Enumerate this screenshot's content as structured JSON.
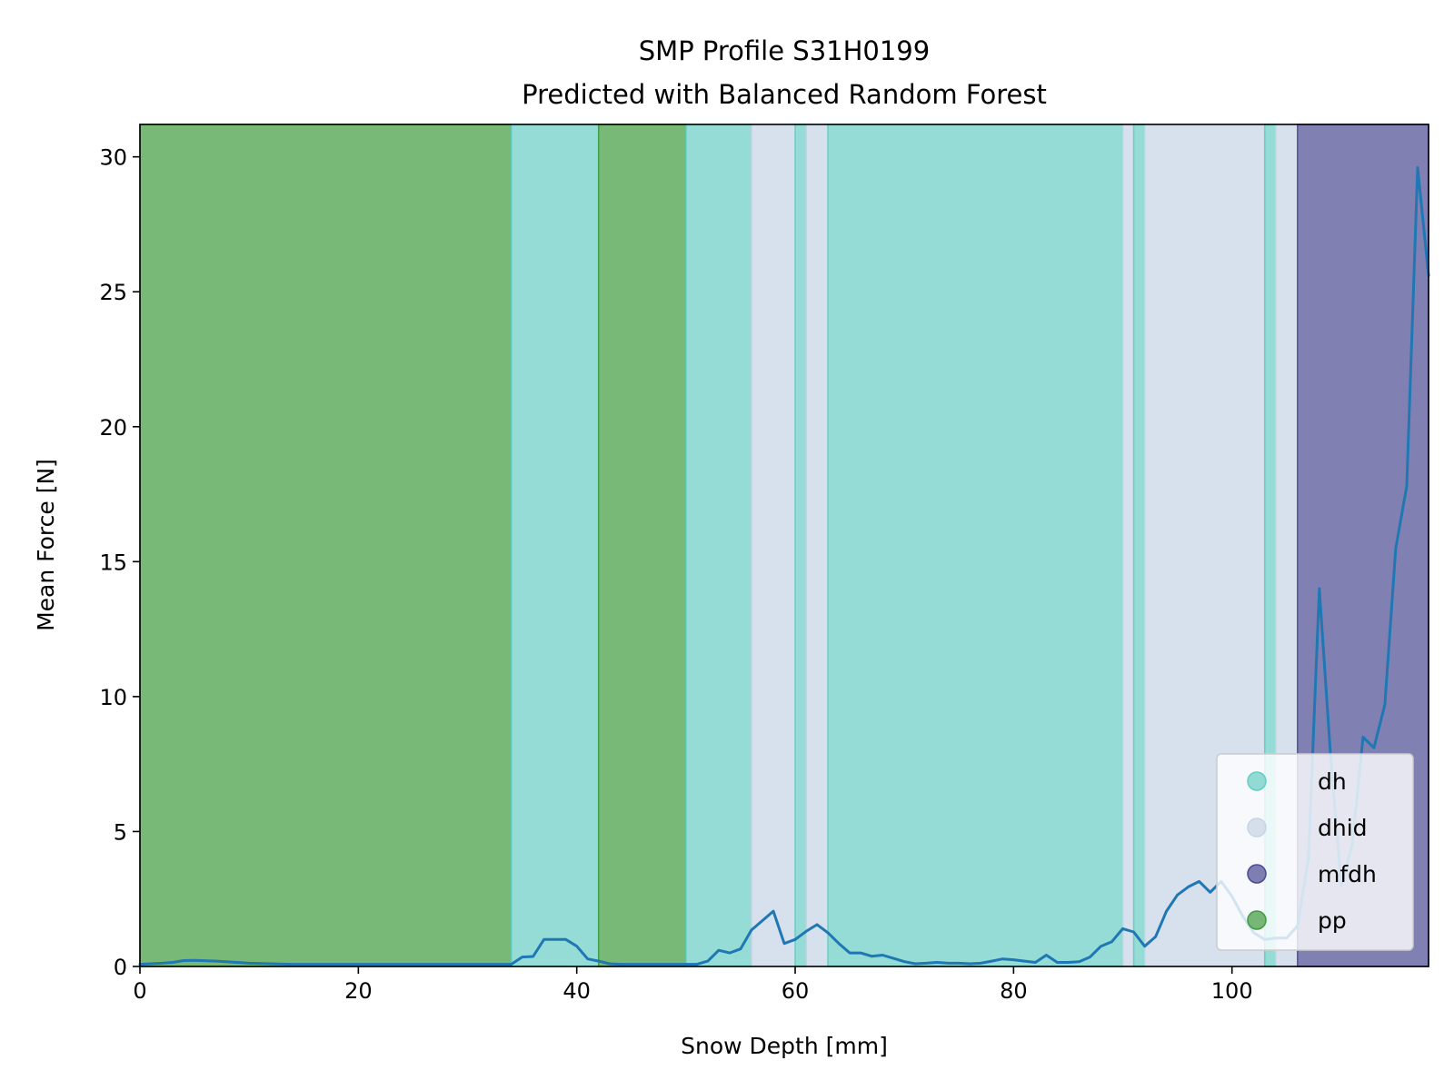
{
  "chart_data": {
    "type": "line",
    "title": "SMP Profile S31H0199",
    "subtitle": "Predicted with Balanced Random Forest",
    "xlabel": "Snow Depth [mm]",
    "ylabel": "Mean Force [N]",
    "xlim": [
      0,
      118
    ],
    "ylim": [
      0,
      31.2
    ],
    "xticks": [
      0,
      20,
      40,
      60,
      80,
      100
    ],
    "yticks": [
      0,
      5,
      10,
      15,
      20,
      25,
      30
    ],
    "grid": false,
    "legend_position": "lower-right",
    "classes": [
      {
        "name": "dh",
        "color": "#66cdc3"
      },
      {
        "name": "dhid",
        "color": "#c6d4e5"
      },
      {
        "name": "mfdh",
        "color": "#4b4a93"
      },
      {
        "name": "pp",
        "color": "#3f9b3f"
      }
    ],
    "segments": [
      {
        "class": "pp",
        "start": 0,
        "end": 34
      },
      {
        "class": "dh",
        "start": 34,
        "end": 42
      },
      {
        "class": "pp",
        "start": 42,
        "end": 50
      },
      {
        "class": "dh",
        "start": 50,
        "end": 56
      },
      {
        "class": "dhid",
        "start": 56,
        "end": 60
      },
      {
        "class": "dh",
        "start": 60,
        "end": 61
      },
      {
        "class": "dhid",
        "start": 61,
        "end": 63
      },
      {
        "class": "dh",
        "start": 63,
        "end": 90
      },
      {
        "class": "dhid",
        "start": 90,
        "end": 91
      },
      {
        "class": "dh",
        "start": 91,
        "end": 92
      },
      {
        "class": "dhid",
        "start": 92,
        "end": 103
      },
      {
        "class": "dh",
        "start": 103,
        "end": 104
      },
      {
        "class": "dhid",
        "start": 104,
        "end": 106
      },
      {
        "class": "mfdh",
        "start": 106,
        "end": 118
      }
    ],
    "series": [
      {
        "color": "#1f77b4",
        "x": [
          0,
          2,
          3,
          4,
          5,
          7,
          10,
          14,
          18,
          22,
          26,
          30,
          34,
          35,
          36,
          37,
          38,
          39,
          40,
          41,
          42,
          43,
          44,
          46,
          48,
          50,
          51,
          52,
          53,
          54,
          55,
          56,
          57,
          58,
          59,
          60,
          61,
          62,
          63,
          64,
          65,
          66,
          67,
          68,
          69,
          70,
          71,
          72,
          73,
          74,
          75,
          76,
          77,
          78,
          79,
          80,
          81,
          82,
          83,
          84,
          85,
          86,
          87,
          88,
          89,
          90,
          91,
          92,
          93,
          94,
          95,
          96,
          97,
          98,
          99,
          100,
          101,
          102,
          103,
          104,
          105,
          106,
          107,
          108,
          109,
          110,
          111,
          112,
          113,
          114,
          115,
          116,
          117,
          118
        ],
        "y": [
          0.08,
          0.12,
          0.15,
          0.22,
          0.23,
          0.2,
          0.12,
          0.08,
          0.08,
          0.08,
          0.08,
          0.08,
          0.08,
          0.35,
          0.37,
          1.0,
          1.0,
          1.0,
          0.75,
          0.28,
          0.2,
          0.1,
          0.08,
          0.08,
          0.08,
          0.08,
          0.08,
          0.2,
          0.6,
          0.5,
          0.65,
          1.35,
          1.7,
          2.05,
          0.85,
          1.0,
          1.3,
          1.55,
          1.25,
          0.85,
          0.5,
          0.5,
          0.38,
          0.42,
          0.3,
          0.18,
          0.1,
          0.12,
          0.15,
          0.12,
          0.12,
          0.1,
          0.12,
          0.2,
          0.28,
          0.25,
          0.2,
          0.15,
          0.42,
          0.15,
          0.15,
          0.18,
          0.35,
          0.75,
          0.92,
          1.4,
          1.28,
          0.75,
          1.1,
          2.05,
          2.65,
          2.95,
          3.15,
          2.75,
          3.15,
          2.6,
          1.85,
          1.25,
          1.0,
          1.05,
          1.05,
          1.5,
          4.0,
          14.0,
          8.0,
          3.0,
          4.5,
          8.5,
          8.1,
          9.7,
          15.5,
          17.8,
          29.6,
          25.6
        ]
      }
    ]
  }
}
